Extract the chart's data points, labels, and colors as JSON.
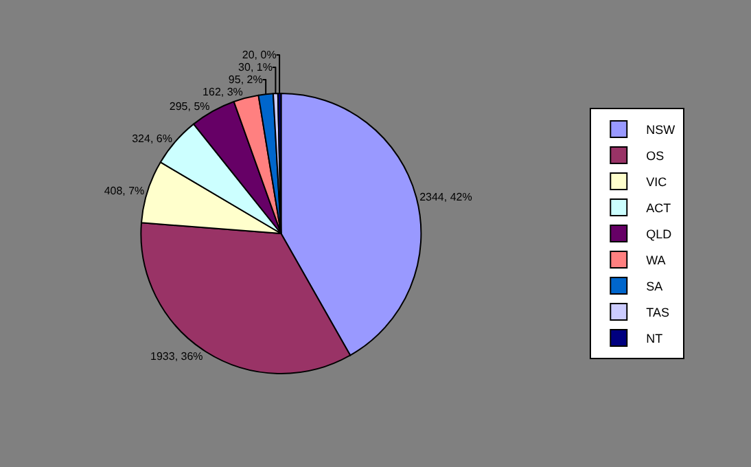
{
  "chart_data": {
    "type": "pie",
    "categories": [
      "NSW",
      "OS",
      "VIC",
      "ACT",
      "QLD",
      "WA",
      "SA",
      "TAS",
      "NT"
    ],
    "values": [
      2344,
      1933,
      408,
      324,
      295,
      162,
      95,
      30,
      20
    ],
    "colors": [
      "#9999ff",
      "#993366",
      "#ffffcc",
      "#ccffff",
      "#660066",
      "#ff8080",
      "#0066cc",
      "#ccccff",
      "#000080"
    ],
    "value_labels": [
      "2344, 42%",
      "1933, 36%",
      "408, 7%",
      "324, 6%",
      "295, 5%",
      "162, 3%",
      "95, 2%",
      "30, 1%",
      "20, 0%"
    ],
    "legend": "right"
  }
}
